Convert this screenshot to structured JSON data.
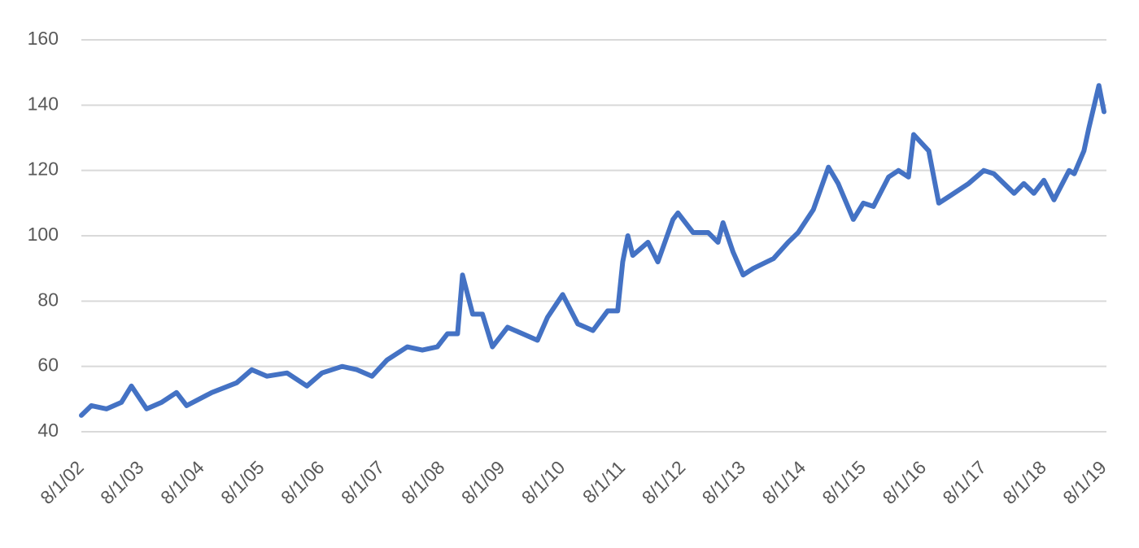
{
  "chart_data": {
    "type": "line",
    "x": [
      "8/1/02",
      "10/1/02",
      "1/1/03",
      "4/1/03",
      "6/1/03",
      "9/1/03",
      "12/1/03",
      "3/1/04",
      "5/1/04",
      "10/1/04",
      "3/1/05",
      "6/1/05",
      "9/1/05",
      "1/1/06",
      "5/1/06",
      "8/1/06",
      "12/1/06",
      "3/1/07",
      "6/1/07",
      "9/1/07",
      "1/1/08",
      "4/1/08",
      "7/1/08",
      "9/1/08",
      "11/1/08",
      "12/1/08",
      "2/1/09",
      "4/1/09",
      "6/1/09",
      "9/1/09",
      "12/1/09",
      "3/1/10",
      "5/1/10",
      "8/1/10",
      "11/1/10",
      "2/1/11",
      "5/1/11",
      "7/1/11",
      "8/1/11",
      "9/1/11",
      "10/1/11",
      "1/1/12",
      "3/1/12",
      "6/1/12",
      "7/1/12",
      "10/1/12",
      "1/1/13",
      "3/1/13",
      "4/1/13",
      "6/1/13",
      "8/1/13",
      "10/1/13",
      "2/1/14",
      "5/1/14",
      "7/1/14",
      "10/1/14",
      "1/1/15",
      "3/1/15",
      "6/1/15",
      "8/1/15",
      "10/1/15",
      "1/1/16",
      "3/1/16",
      "5/1/16",
      "6/1/16",
      "9/1/16",
      "11/1/16",
      "1/1/17",
      "5/1/17",
      "8/1/17",
      "10/1/17",
      "2/1/18",
      "4/1/18",
      "6/1/18",
      "8/1/18",
      "10/1/18",
      "1/1/19",
      "2/1/19",
      "4/1/19",
      "5/1/19",
      "7/1/19",
      "8/1/19"
    ],
    "series": [
      {
        "color": "#4472c4",
        "values": [
          45,
          48,
          47,
          49,
          54,
          47,
          49,
          52,
          48,
          52,
          55,
          59,
          57,
          58,
          54,
          58,
          60,
          59,
          57,
          62,
          66,
          65,
          66,
          70,
          70,
          88,
          76,
          76,
          66,
          72,
          70,
          68,
          75,
          82,
          73,
          71,
          77,
          77,
          92,
          100,
          94,
          98,
          92,
          105,
          107,
          101,
          101,
          98,
          104,
          95,
          88,
          90,
          93,
          98,
          101,
          108,
          121,
          116,
          105,
          110,
          109,
          118,
          120,
          118,
          131,
          126,
          110,
          112,
          116,
          120,
          119,
          113,
          116,
          113,
          117,
          111,
          120,
          119,
          126,
          133,
          146,
          138
        ]
      }
    ],
    "xlim": [
      "8/1/02",
      "8/1/19"
    ],
    "xticks": [
      "8/1/02",
      "8/1/03",
      "8/1/04",
      "8/1/05",
      "8/1/06",
      "8/1/07",
      "8/1/08",
      "8/1/09",
      "8/1/10",
      "8/1/11",
      "8/1/12",
      "8/1/13",
      "8/1/14",
      "8/1/15",
      "8/1/16",
      "8/1/17",
      "8/1/18",
      "8/1/19"
    ],
    "ylim": [
      40,
      160
    ],
    "yticks": [
      40,
      60,
      80,
      100,
      120,
      140,
      160
    ],
    "grid": true
  }
}
